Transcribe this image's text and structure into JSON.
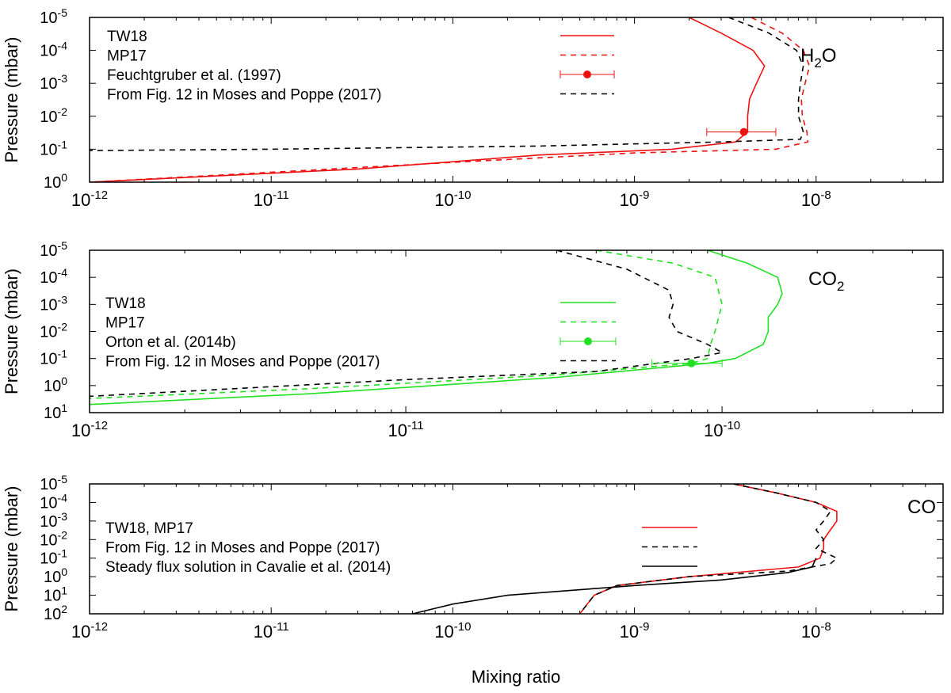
{
  "figure": {
    "xlabel": "Mixing ratio",
    "colors": {
      "tw18": "#ee1111",
      "co2": "#22e022",
      "moses": "#000000"
    }
  },
  "chart_data": [
    {
      "type": "line",
      "species_label": {
        "main": "H",
        "sub": "2",
        "tail": "O"
      },
      "xlabel": "",
      "ylabel": "Pressure (mbar)",
      "xscale": "log",
      "yscale": "log",
      "y_inverted": true,
      "xlim": [
        1e-12,
        5e-08
      ],
      "ylim": [
        1e-05,
        1
      ],
      "x_ticks": [
        {
          "base": "10",
          "exp": "-12",
          "v": 1e-12
        },
        {
          "base": "10",
          "exp": "-11",
          "v": 1e-11
        },
        {
          "base": "10",
          "exp": "-10",
          "v": 1e-10
        },
        {
          "base": "10",
          "exp": "-9",
          "v": 1e-09
        },
        {
          "base": "10",
          "exp": "-8",
          "v": 1e-08
        }
      ],
      "y_ticks": [
        {
          "base": "10",
          "exp": "-5",
          "v": 1e-05
        },
        {
          "base": "10",
          "exp": "-4",
          "v": 0.0001
        },
        {
          "base": "10",
          "exp": "-3",
          "v": 0.001
        },
        {
          "base": "10",
          "exp": "-2",
          "v": 0.01
        },
        {
          "base": "10",
          "exp": "-1",
          "v": 0.1
        },
        {
          "base": "10",
          "exp": "0",
          "v": 1
        }
      ],
      "legend": {
        "placement": "top-left"
      },
      "series": [
        {
          "name": "TW18",
          "style": "solid",
          "color": "#ee1111",
          "points": [
            [
              2e-09,
              1e-05
            ],
            [
              3e-09,
              3e-05
            ],
            [
              4.5e-09,
              0.0001
            ],
            [
              5.2e-09,
              0.0003
            ],
            [
              4.7e-09,
              0.001
            ],
            [
              4.3e-09,
              0.003
            ],
            [
              4.2e-09,
              0.01
            ],
            [
              4.2e-09,
              0.03
            ],
            [
              3.6e-09,
              0.06
            ],
            [
              1.6e-09,
              0.1
            ],
            [
              3e-10,
              0.15
            ],
            [
              3e-11,
              0.4
            ],
            [
              1e-12,
              1
            ]
          ]
        },
        {
          "name": "MP17",
          "style": "dashed",
          "color": "#ee1111",
          "points": [
            [
              4.4e-09,
              1e-05
            ],
            [
              6.5e-09,
              3e-05
            ],
            [
              8.5e-09,
              0.0001
            ],
            [
              9.2e-09,
              0.0003
            ],
            [
              8.7e-09,
              0.001
            ],
            [
              8.3e-09,
              0.003
            ],
            [
              8.4e-09,
              0.01
            ],
            [
              8.9e-09,
              0.03
            ],
            [
              9e-09,
              0.06
            ],
            [
              6e-09,
              0.1
            ],
            [
              1e-09,
              0.13
            ],
            [
              1e-10,
              0.25
            ],
            [
              1e-12,
              1
            ]
          ]
        },
        {
          "name": "From Fig. 12 in Moses and Poppe (2017)",
          "style": "dashed",
          "color": "#000000",
          "points": [
            [
              3.3e-09,
              1e-05
            ],
            [
              5.5e-09,
              3e-05
            ],
            [
              7.8e-09,
              0.0001
            ],
            [
              8.5e-09,
              0.0003
            ],
            [
              8.2e-09,
              0.001
            ],
            [
              8e-09,
              0.003
            ],
            [
              8e-09,
              0.01
            ],
            [
              8.5e-09,
              0.03
            ],
            [
              8.2e-09,
              0.05
            ],
            [
              3e-09,
              0.06
            ],
            [
              3e-10,
              0.08
            ],
            [
              1e-11,
              0.1
            ],
            [
              1e-12,
              0.11
            ]
          ]
        }
      ],
      "observation": {
        "name": "Feuchtgruber et al. (1997)",
        "color": "#ee1111",
        "x": 4e-09,
        "x_err": [
          2.5e-09,
          6e-09
        ],
        "y": 0.03
      }
    },
    {
      "type": "line",
      "species_label": {
        "main": "CO",
        "sub": "2",
        "tail": ""
      },
      "xlabel": "",
      "ylabel": "Pressure (mbar)",
      "xscale": "log",
      "yscale": "log",
      "y_inverted": true,
      "xlim": [
        1e-12,
        5e-10
      ],
      "ylim": [
        1e-05,
        10
      ],
      "x_ticks": [
        {
          "base": "10",
          "exp": "-12",
          "v": 1e-12
        },
        {
          "base": "10",
          "exp": "-11",
          "v": 1e-11
        },
        {
          "base": "10",
          "exp": "-10",
          "v": 1e-10
        }
      ],
      "y_ticks": [
        {
          "base": "10",
          "exp": "-5",
          "v": 1e-05
        },
        {
          "base": "10",
          "exp": "-4",
          "v": 0.0001
        },
        {
          "base": "10",
          "exp": "-3",
          "v": 0.001
        },
        {
          "base": "10",
          "exp": "-2",
          "v": 0.01
        },
        {
          "base": "10",
          "exp": "-1",
          "v": 0.1
        },
        {
          "base": "10",
          "exp": "0",
          "v": 1
        },
        {
          "base": "10",
          "exp": "1",
          "v": 10
        }
      ],
      "legend": {
        "placement": "center-left"
      },
      "series": [
        {
          "name": "TW18",
          "style": "solid",
          "color": "#22e022",
          "points": [
            [
              9e-11,
              1e-05
            ],
            [
              1.2e-10,
              3e-05
            ],
            [
              1.5e-10,
              0.0001
            ],
            [
              1.55e-10,
              0.0004
            ],
            [
              1.5e-10,
              0.001
            ],
            [
              1.4e-10,
              0.003
            ],
            [
              1.4e-10,
              0.01
            ],
            [
              1.35e-10,
              0.03
            ],
            [
              1.1e-10,
              0.1
            ],
            [
              9e-11,
              0.15
            ],
            [
              3e-11,
              0.5
            ],
            [
              5e-12,
              2
            ],
            [
              1e-12,
              5
            ]
          ]
        },
        {
          "name": "MP17",
          "style": "dashed",
          "color": "#22e022",
          "points": [
            [
              4e-11,
              1e-05
            ],
            [
              7e-11,
              3e-05
            ],
            [
              9.5e-11,
              0.0001
            ],
            [
              1e-10,
              0.001
            ],
            [
              9.5e-11,
              0.01
            ],
            [
              9.2e-11,
              0.03
            ],
            [
              9e-11,
              0.1
            ],
            [
              8e-11,
              0.15
            ],
            [
              3e-11,
              0.4
            ],
            [
              5e-12,
              1.3
            ],
            [
              1e-12,
              3
            ]
          ]
        },
        {
          "name": "From Fig. 12 in Moses and Poppe (2017)",
          "style": "dashed",
          "color": "#000000",
          "points": [
            [
              3e-11,
              1e-05
            ],
            [
              5e-11,
              5e-05
            ],
            [
              6.8e-11,
              0.0003
            ],
            [
              7e-11,
              0.001
            ],
            [
              6.8e-11,
              0.003
            ],
            [
              7.2e-11,
              0.01
            ],
            [
              9e-11,
              0.03
            ],
            [
              1e-10,
              0.06
            ],
            [
              8e-11,
              0.1
            ],
            [
              4e-11,
              0.3
            ],
            [
              1e-11,
              0.6
            ],
            [
              1e-12,
              2.5
            ]
          ]
        }
      ],
      "observation": {
        "name": "Orton et al. (2014b)",
        "color": "#22e022",
        "x": 8e-11,
        "x_err": [
          6e-11,
          1e-10
        ],
        "y": 0.15
      }
    },
    {
      "type": "line",
      "species_label": {
        "main": "CO",
        "sub": "",
        "tail": ""
      },
      "xlabel": "Mixing ratio",
      "ylabel": "Pressure (mbar)",
      "xscale": "log",
      "yscale": "log",
      "y_inverted": true,
      "xlim": [
        1e-12,
        5e-08
      ],
      "ylim": [
        1e-05,
        100
      ],
      "x_ticks": [
        {
          "base": "10",
          "exp": "-12",
          "v": 1e-12
        },
        {
          "base": "10",
          "exp": "-11",
          "v": 1e-11
        },
        {
          "base": "10",
          "exp": "-10",
          "v": 1e-10
        },
        {
          "base": "10",
          "exp": "-9",
          "v": 1e-09
        },
        {
          "base": "10",
          "exp": "-8",
          "v": 1e-08
        }
      ],
      "y_ticks": [
        {
          "base": "10",
          "exp": "-5",
          "v": 1e-05
        },
        {
          "base": "10",
          "exp": "-4",
          "v": 0.0001
        },
        {
          "base": "10",
          "exp": "-3",
          "v": 0.001
        },
        {
          "base": "10",
          "exp": "-2",
          "v": 0.01
        },
        {
          "base": "10",
          "exp": "-1",
          "v": 0.1
        },
        {
          "base": "10",
          "exp": "0",
          "v": 1
        },
        {
          "base": "10",
          "exp": "1",
          "v": 10
        },
        {
          "base": "10",
          "exp": "2",
          "v": 100
        }
      ],
      "legend": {
        "placement": "center-left"
      },
      "series": [
        {
          "name": "TW18, MP17",
          "style": "solid",
          "color": "#ee1111",
          "points": [
            [
              3.5e-09,
              1e-05
            ],
            [
              6e-09,
              3e-05
            ],
            [
              1e-08,
              0.0001
            ],
            [
              1.3e-08,
              0.0003
            ],
            [
              1.3e-08,
              0.001
            ],
            [
              1.2e-08,
              0.003
            ],
            [
              1.1e-08,
              0.01
            ],
            [
              1.1e-08,
              0.03
            ],
            [
              1.05e-08,
              0.1
            ],
            [
              8e-09,
              0.3
            ],
            [
              2e-09,
              1
            ],
            [
              8e-10,
              3
            ],
            [
              6e-10,
              10
            ],
            [
              5.5e-10,
              30
            ],
            [
              5e-10,
              100
            ]
          ]
        },
        {
          "name": "From Fig. 12 in Moses and Poppe (2017)",
          "style": "dashed",
          "color": "#000000",
          "points": [
            [
              3.5e-09,
              1e-05
            ],
            [
              6e-09,
              3e-05
            ],
            [
              1e-08,
              0.0001
            ],
            [
              1.2e-08,
              0.0003
            ],
            [
              1.1e-08,
              0.001
            ],
            [
              1e-08,
              0.003
            ],
            [
              1.1e-08,
              0.01
            ],
            [
              1e-08,
              0.03
            ],
            [
              1.3e-08,
              0.1
            ],
            [
              1.2e-08,
              0.2
            ],
            [
              7e-09,
              0.5
            ],
            [
              2e-09,
              1
            ],
            [
              8e-10,
              3
            ],
            [
              6e-10,
              10
            ],
            [
              5.5e-10,
              30
            ],
            [
              5e-10,
              100
            ]
          ]
        },
        {
          "name": "Steady flux solution in Cavalie et al. (2014)",
          "style": "solid",
          "color": "#000000",
          "points": [
            [
              1e-08,
              0.1
            ],
            [
              9.5e-09,
              0.3
            ],
            [
              7e-09,
              0.6
            ],
            [
              3e-09,
              1.5
            ],
            [
              1e-09,
              3
            ],
            [
              2e-10,
              10
            ],
            [
              1e-10,
              30
            ],
            [
              6e-11,
              100
            ]
          ]
        }
      ]
    }
  ]
}
